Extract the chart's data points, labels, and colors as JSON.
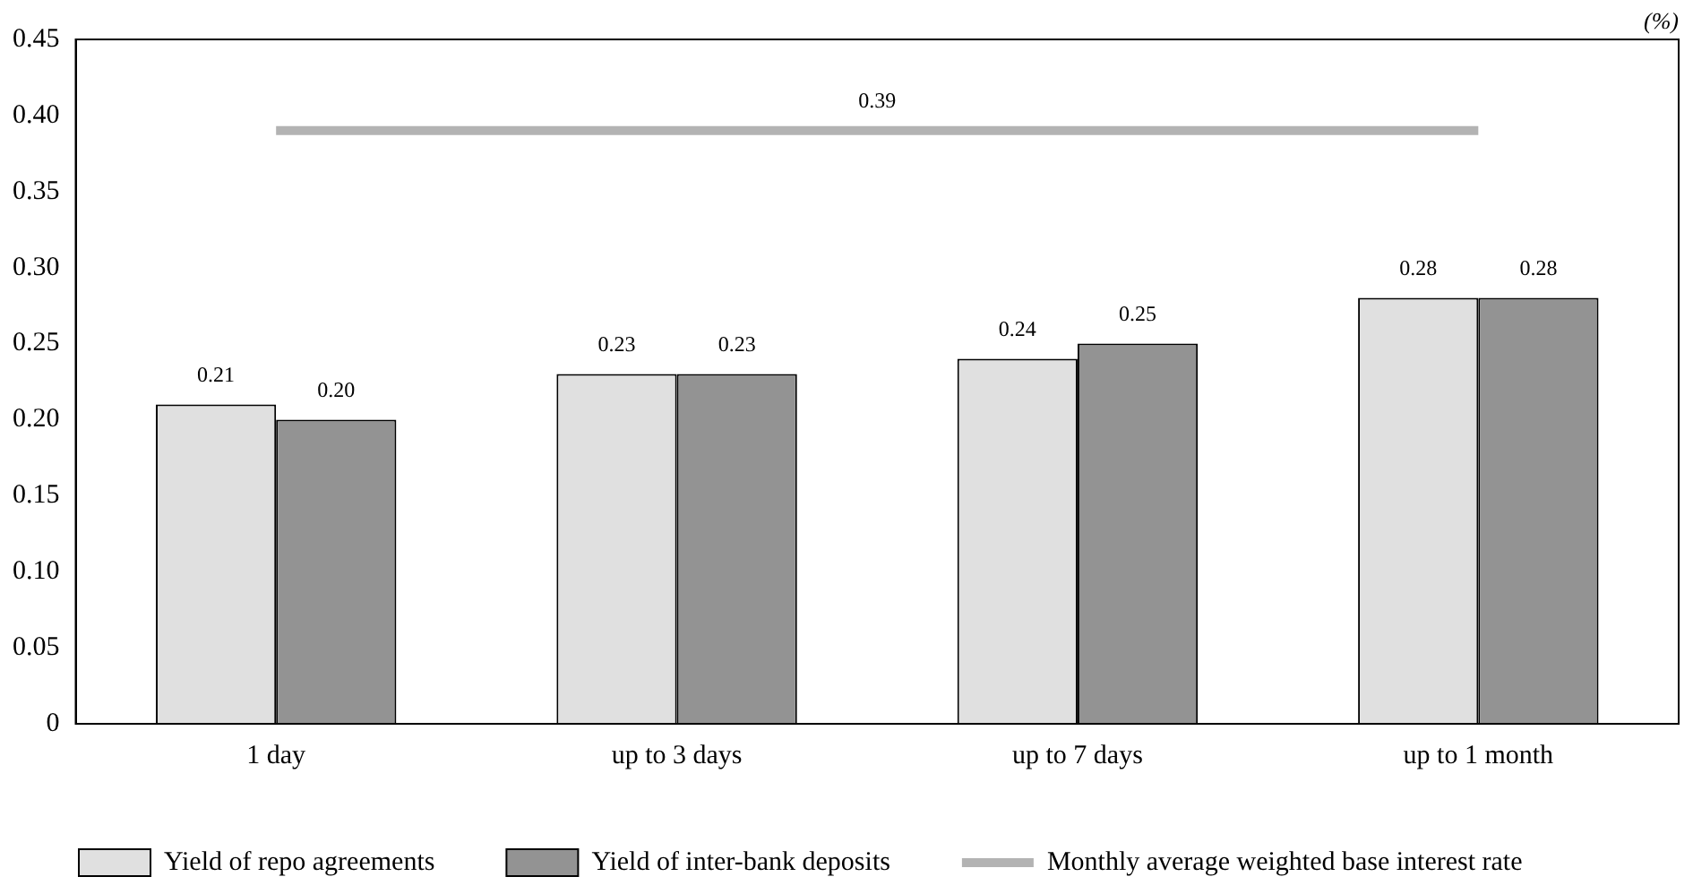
{
  "chart_data": {
    "type": "bar",
    "ylabel": "(%)",
    "categories": [
      "1 day",
      "up to 3 days",
      "up to 7 days",
      "up to 1 month"
    ],
    "series": [
      {
        "name": "Yield of repo agreements",
        "color": "#e0e0e0",
        "values": [
          0.21,
          0.23,
          0.24,
          0.28
        ],
        "value_labels": [
          "0.21",
          "0.23",
          "0.24",
          "0.28"
        ]
      },
      {
        "name": "Yield of inter-bank deposits",
        "color": "#939393",
        "values": [
          0.2,
          0.23,
          0.25,
          0.28
        ],
        "value_labels": [
          "0.20",
          "0.23",
          "0.25",
          "0.28"
        ]
      },
      {
        "type": "line",
        "name": "Monthly average weighted base interest rate",
        "color": "#b3b3b3",
        "values": [
          0.39,
          0.39,
          0.39,
          0.39
        ]
      }
    ],
    "annotations": [
      {
        "text": "0.39",
        "y": 0.39
      }
    ],
    "ylim": [
      0,
      0.45
    ],
    "yticks": [
      0,
      0.05,
      {
        "value": 0.1,
        "label": "0.10"
      },
      0.15,
      {
        "value": 0.2,
        "label": "0.20"
      },
      0.25,
      {
        "value": 0.3,
        "label": "0.30"
      },
      0.35,
      {
        "value": 0.4,
        "label": "0.40"
      },
      0.45
    ],
    "grid": false,
    "legend": "bottom"
  }
}
